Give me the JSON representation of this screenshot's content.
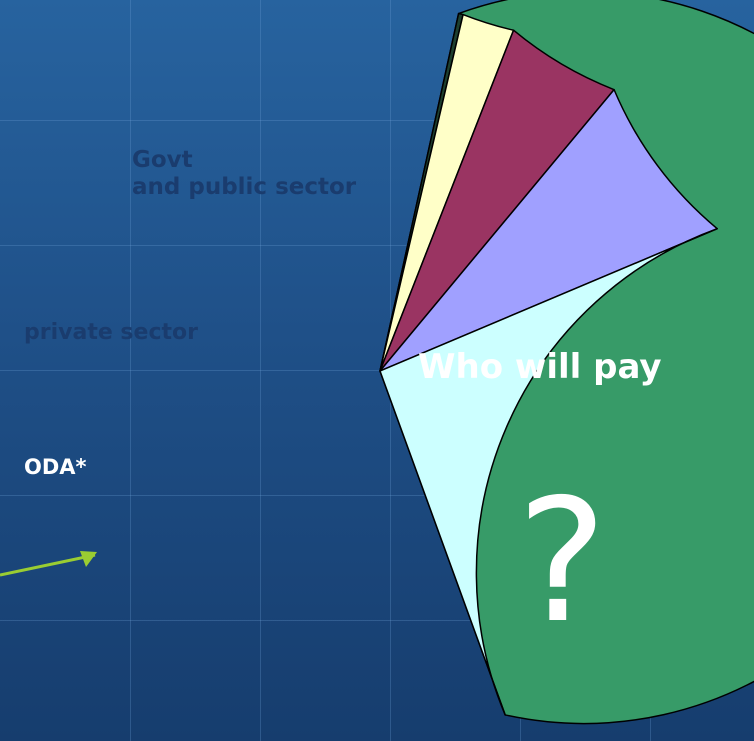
{
  "chart_data": {
    "type": "pie",
    "slices": [
      {
        "label": "Who will pay",
        "value": 59.0,
        "color": "#379b68"
      },
      {
        "label": "",
        "value": 0.2,
        "color": "#1d3f2f"
      },
      {
        "label": "",
        "value": 2.3,
        "color": "#ffffc8"
      },
      {
        "label": "ODA*",
        "value": 5.1,
        "color": "#9a3462"
      },
      {
        "label": "private sector",
        "value": 7.6,
        "color": "#a0a0ff"
      },
      {
        "label": "Govt and public sector",
        "value": 25.8,
        "color": "#ccffff"
      }
    ],
    "labels": {
      "govt_line1": "Govt",
      "govt_line2": "and public sector",
      "private": "private sector",
      "oda": "ODA*",
      "who": "Who will pay",
      "question": "?"
    },
    "arrow_color": "#9acd32",
    "legend": "none",
    "grid": false
  }
}
